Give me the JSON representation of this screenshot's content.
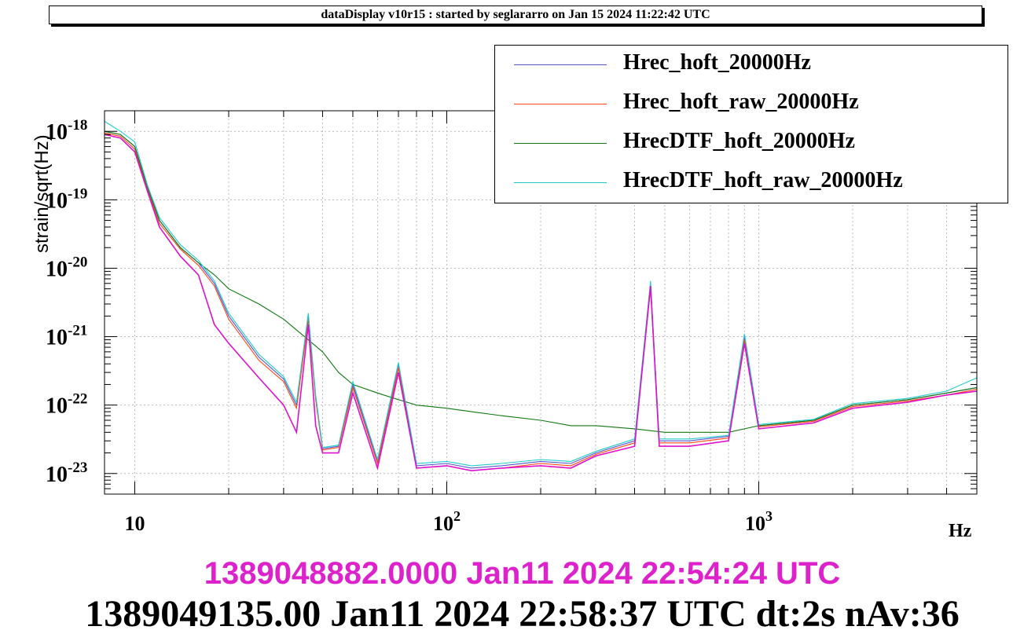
{
  "header": {
    "title": "dataDisplay v10r15 : started by seglararro on Jan 15 2024 11:22:42 UTC"
  },
  "footer": {
    "start_time": "1389048882.0000 Jan11 2024 22:54:24 UTC",
    "end_time": "1389049135.00 Jan11 2024 22:58:37 UTC dt:2s nAv:36"
  },
  "chart_data": {
    "type": "line",
    "title": "",
    "xlabel": "Hz",
    "ylabel": "strain/sqrt(Hz)",
    "xscale": "log",
    "yscale": "log",
    "xlim": [
      8,
      5000
    ],
    "ylim": [
      5e-24,
      2e-18
    ],
    "grid": true,
    "legend_position": "top-right",
    "x_ticks": [
      {
        "value": 10,
        "base": "10",
        "exp": ""
      },
      {
        "value": 100,
        "base": "10",
        "exp": "2"
      },
      {
        "value": 1000,
        "base": "10",
        "exp": "3"
      }
    ],
    "y_ticks": [
      {
        "value": 1e-18,
        "base": "10",
        "exp": "-18"
      },
      {
        "value": 1e-19,
        "base": "10",
        "exp": "-19"
      },
      {
        "value": 1e-20,
        "base": "10",
        "exp": "-20"
      },
      {
        "value": 1e-21,
        "base": "10",
        "exp": "-21"
      },
      {
        "value": 1e-22,
        "base": "10",
        "exp": "-22"
      },
      {
        "value": 1e-23,
        "base": "10",
        "exp": "-23"
      }
    ],
    "series": [
      {
        "name": "Hrec_hoft_20000Hz",
        "color": "#5555cc",
        "x": [
          8,
          9,
          10,
          11,
          12,
          14,
          16,
          18,
          20,
          25,
          30,
          33,
          36,
          38,
          40,
          45,
          50,
          60,
          70,
          80,
          100,
          120,
          150,
          200,
          250,
          300,
          400,
          450,
          480,
          500,
          600,
          800,
          900,
          1000,
          1500,
          2000,
          3000,
          4000,
          5000
        ],
        "y": [
          1e-18,
          9e-19,
          6e-19,
          1.5e-19,
          5e-20,
          2e-20,
          1.2e-20,
          6e-21,
          2e-21,
          5e-22,
          2.4e-22,
          1e-22,
          2e-21,
          1.3e-22,
          2.3e-23,
          2.5e-23,
          2e-22,
          1.5e-23,
          4e-22,
          1.3e-23,
          1.4e-23,
          1.2e-23,
          1.3e-23,
          1.5e-23,
          1.4e-23,
          2e-23,
          3e-23,
          6e-21,
          3e-23,
          3e-23,
          3e-23,
          3.5e-23,
          1e-21,
          5e-23,
          6e-23,
          1e-22,
          1.2e-22,
          1.5e-22,
          1.8e-22
        ]
      },
      {
        "name": "Hrec_hoft_raw_20000Hz",
        "color": "#ff4411",
        "x": [
          8,
          9,
          10,
          11,
          12,
          14,
          16,
          18,
          20,
          25,
          30,
          33,
          36,
          38,
          40,
          45,
          50,
          60,
          70,
          80,
          100,
          120,
          150,
          200,
          250,
          300,
          400,
          450,
          480,
          500,
          600,
          800,
          900,
          1000,
          1500,
          2000,
          3000,
          4000,
          5000
        ],
        "y": [
          9.5e-19,
          8.5e-19,
          5.5e-19,
          1.4e-19,
          4.5e-20,
          1.9e-20,
          1.1e-20,
          5.5e-21,
          1.8e-21,
          4.5e-22,
          2.2e-22,
          9e-23,
          1.8e-21,
          1.2e-22,
          2.2e-23,
          2.4e-23,
          1.8e-22,
          1.4e-23,
          3.5e-22,
          1.2e-23,
          1.3e-23,
          1.1e-23,
          1.2e-23,
          1.4e-23,
          1.3e-23,
          1.9e-23,
          2.8e-23,
          5e-21,
          2.8e-23,
          2.8e-23,
          2.8e-23,
          3.3e-23,
          9e-22,
          4.8e-23,
          5.8e-23,
          9.5e-23,
          1.15e-22,
          1.4e-22,
          1.7e-22
        ]
      },
      {
        "name": "HrecDTF_hoft_20000Hz",
        "color": "#117711",
        "x": [
          8,
          9,
          10,
          11,
          12,
          14,
          16,
          18,
          20,
          25,
          30,
          35,
          40,
          45,
          50,
          60,
          70,
          80,
          100,
          120,
          150,
          200,
          250,
          300,
          400,
          500,
          600,
          800,
          1000,
          1500,
          2000,
          3000,
          4000,
          5000
        ],
        "y": [
          1e-18,
          9e-19,
          6e-19,
          1.5e-19,
          5e-20,
          2e-20,
          1.2e-20,
          8e-21,
          5e-21,
          3e-21,
          1.8e-21,
          1e-21,
          6e-22,
          3e-22,
          2e-22,
          1.5e-22,
          1.2e-22,
          1e-22,
          9e-23,
          8e-23,
          7e-23,
          6e-23,
          5e-23,
          5e-23,
          4.5e-23,
          4e-23,
          4e-23,
          4e-23,
          5e-23,
          6e-23,
          1e-22,
          1.2e-22,
          1.5e-22,
          1.8e-22
        ]
      },
      {
        "name": "HrecDTF_hoft_raw_20000Hz",
        "color": "#22cccc",
        "x": [
          8,
          9,
          10,
          11,
          12,
          14,
          16,
          18,
          20,
          25,
          30,
          33,
          36,
          38,
          40,
          45,
          50,
          60,
          70,
          80,
          100,
          120,
          150,
          200,
          250,
          300,
          400,
          450,
          480,
          500,
          600,
          800,
          900,
          1000,
          1500,
          2000,
          3000,
          4000,
          5000
        ],
        "y": [
          1.4e-18,
          1e-18,
          7e-19,
          1.6e-19,
          5.5e-20,
          2.2e-20,
          1.3e-20,
          6.5e-21,
          2.2e-21,
          5.5e-22,
          2.6e-22,
          1.1e-22,
          2.2e-21,
          1.4e-22,
          2.4e-23,
          2.6e-23,
          2.2e-22,
          1.6e-23,
          4.2e-22,
          1.4e-23,
          1.5e-23,
          1.3e-23,
          1.4e-23,
          1.6e-23,
          1.5e-23,
          2.1e-23,
          3.2e-23,
          6.5e-21,
          3.2e-23,
          3.2e-23,
          3.2e-23,
          3.6e-23,
          1.1e-21,
          5.2e-23,
          6.2e-23,
          1.05e-22,
          1.25e-22,
          1.6e-22,
          2.5e-22
        ]
      },
      {
        "name": "",
        "color": "#dd11cc",
        "x": [
          8,
          9,
          10,
          11,
          12,
          14,
          16,
          18,
          20,
          25,
          30,
          33,
          36,
          38,
          40,
          45,
          50,
          60,
          70,
          80,
          100,
          120,
          150,
          200,
          250,
          300,
          400,
          450,
          480,
          500,
          600,
          800,
          900,
          1000,
          1500,
          2000,
          3000,
          4000,
          5000
        ],
        "y": [
          9e-19,
          8e-19,
          5e-19,
          1.3e-19,
          4e-20,
          1.5e-20,
          8e-21,
          1.5e-21,
          8e-22,
          2.5e-22,
          1e-22,
          4e-23,
          1.5e-21,
          5e-23,
          2e-23,
          2e-23,
          1.5e-22,
          1.2e-23,
          3e-22,
          1.2e-23,
          1.3e-23,
          1.1e-23,
          1.2e-23,
          1.3e-23,
          1.2e-23,
          1.8e-23,
          2.5e-23,
          5.5e-21,
          2.5e-23,
          2.5e-23,
          2.5e-23,
          3e-23,
          8e-22,
          4.5e-23,
          5.5e-23,
          9e-23,
          1.1e-22,
          1.4e-22,
          1.6e-22
        ]
      }
    ]
  }
}
